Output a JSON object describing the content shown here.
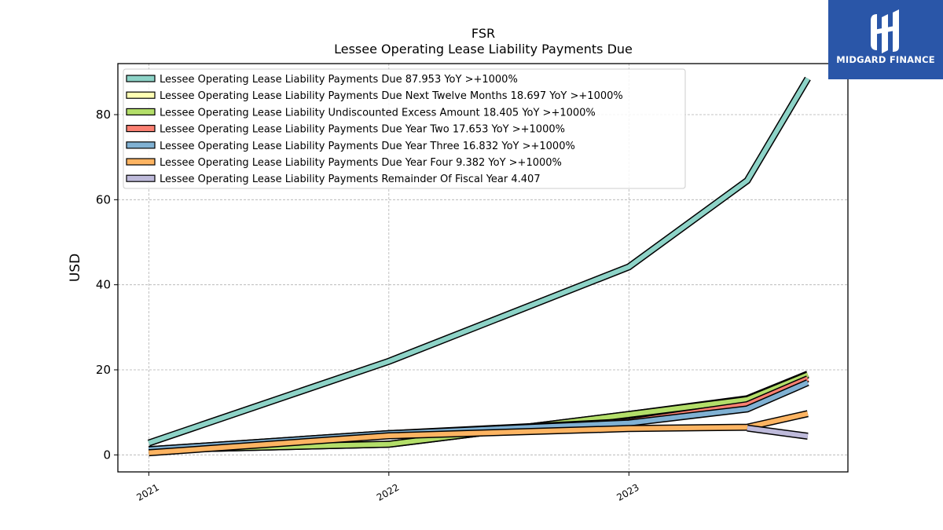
{
  "logo": {
    "text": "MIDGARD FINANCE",
    "icon": "midgard-logo-icon",
    "background": "#2a56a8"
  },
  "chart_data": {
    "type": "line",
    "title": "FSR",
    "subtitle": "Lessee Operating Lease Liability Payments Due",
    "xlabel": "",
    "ylabel": "USD",
    "xlim": [
      "2020-11-15",
      "2023-11-30"
    ],
    "ylim": [
      -4,
      92
    ],
    "x_ticks": [
      "2021",
      "2022",
      "2023"
    ],
    "y_ticks": [
      0,
      20,
      40,
      60,
      80
    ],
    "grid": true,
    "legend_position": "top-left",
    "series": [
      {
        "name": "Lessee Operating Lease Liability Payments Due  87.953 YoY >+1000%",
        "color": "#8dd3c7",
        "x": [
          "2021-01-01",
          "2022-01-01",
          "2023-01-01",
          "2023-06-30",
          "2023-09-30"
        ],
        "y": [
          2.8,
          22.0,
          44.2,
          64.5,
          88.5
        ]
      },
      {
        "name": "Lessee Operating Lease Liability Payments Due Next Twelve Months  18.697 YoY >+1000%",
        "color": "#ffffb3",
        "x": [
          "2021-01-01",
          "2022-01-01",
          "2023-01-01",
          "2023-06-30",
          "2023-09-30"
        ],
        "y": [
          1.2,
          2.5,
          9.5,
          13.2,
          19.0
        ]
      },
      {
        "name": "Lessee Operating Lease Liability Undiscounted Excess Amount  18.405 YoY >+1000%",
        "color": "#b3de69",
        "x": [
          "2021-01-01",
          "2022-01-01",
          "2023-01-01",
          "2023-06-30",
          "2023-09-30"
        ],
        "y": [
          1.2,
          2.5,
          9.5,
          13.0,
          18.8
        ]
      },
      {
        "name": "Lessee Operating Lease Liability Payments Due Year Two  17.653 YoY >+1000%",
        "color": "#fb8072",
        "x": [
          "2021-01-01",
          "2022-01-01",
          "2023-01-01",
          "2023-06-30",
          "2023-09-30"
        ],
        "y": [
          1.2,
          5.0,
          7.8,
          11.8,
          17.9
        ]
      },
      {
        "name": "Lessee Operating Lease Liability Payments Due Year Three  16.832 YoY >+1000%",
        "color": "#80b1d3",
        "x": [
          "2021-01-01",
          "2022-01-01",
          "2023-01-01",
          "2023-06-30",
          "2023-09-30"
        ],
        "y": [
          1.2,
          5.0,
          7.5,
          10.8,
          17.0
        ]
      },
      {
        "name": "Lessee Operating Lease Liability Payments Due Year Four  9.382 YoY >+1000%",
        "color": "#fdb462",
        "x": [
          "2021-01-01",
          "2022-01-01",
          "2023-01-01",
          "2023-06-30",
          "2023-09-30"
        ],
        "y": [
          0.5,
          4.5,
          6.2,
          6.5,
          9.7
        ]
      },
      {
        "name": "Lessee Operating Lease Liability Payments Remainder Of Fiscal Year  4.407",
        "color": "#bebada",
        "x": [
          "2023-06-30",
          "2023-09-30"
        ],
        "y": [
          6.3,
          4.4
        ]
      }
    ]
  }
}
